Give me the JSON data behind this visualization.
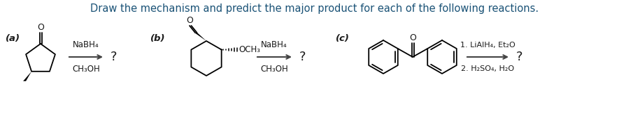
{
  "title": "Draw the mechanism and predict the major product for each of the following reactions.",
  "title_color": "#1a5276",
  "title_fontsize": 10.5,
  "background_color": "#ffffff",
  "label_a": "(a)",
  "label_b": "(b)",
  "label_c": "(c)",
  "reagent_a_line1": "NaBH₄",
  "reagent_a_line2": "CH₃OH",
  "reagent_b_line1": "NaBH₄",
  "reagent_b_line2": "CH₃OH",
  "reagent_c_line1": "1. LiAlH₄, Et₂O",
  "reagent_c_line2": "2. H₂SO₄, H₂O",
  "question_mark": "?",
  "text_color": "#1a1a1a",
  "label_color": "#1a1a1a",
  "arrow_color": "#555555",
  "ester_label": "OCH₃",
  "figwidth": 9.05,
  "figheight": 1.67,
  "dpi": 100
}
